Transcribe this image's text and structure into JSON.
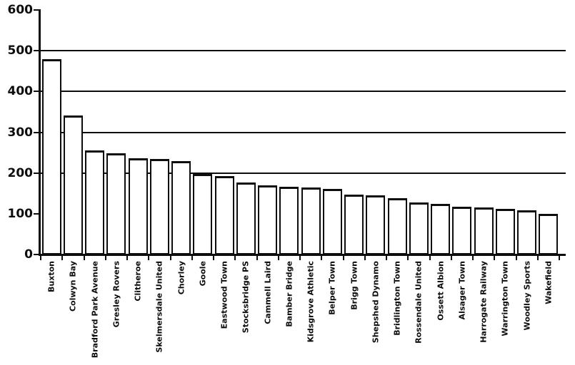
{
  "chart_data": {
    "type": "bar",
    "title": "",
    "xlabel": "",
    "ylabel": "",
    "categories": [
      "Buxton",
      "Colwyn Bay",
      "Bradford Park Avenue",
      "Gresley Rovers",
      "Clitheroe",
      "Skelmersdale United",
      "Chorley",
      "Goole",
      "Eastwood Town",
      "Stocksbridge PS",
      "Cammell Laird",
      "Bamber Bridge",
      "Kidsgrove Athletic",
      "Belper Town",
      "Brigg Town",
      "Shepshed Dynamo",
      "Bridlington Town",
      "Rossendale United",
      "Ossett Albion",
      "Alsager Town",
      "Harrogate Railway",
      "Warrington Town",
      "Woodley Sports",
      "Wakefield"
    ],
    "values": [
      480,
      341,
      255,
      248,
      237,
      235,
      230,
      198,
      192,
      176,
      170,
      166,
      164,
      161,
      147,
      146,
      138,
      127,
      124,
      118,
      115,
      112,
      109,
      99
    ],
    "ylim": [
      0,
      600
    ],
    "yticks": [
      0,
      100,
      200,
      300,
      400,
      500,
      600
    ],
    "gridlines_at": [
      200,
      300,
      400,
      500
    ],
    "grid": "horizontal",
    "legend": "none",
    "colors": {
      "bar_fill": "#ffffff",
      "bar_border": "#0d0d0d",
      "axis": "#0d0d0d",
      "gridline": "#0d0d0d",
      "text": "#0d0d0d",
      "background": "#ffffff"
    }
  }
}
